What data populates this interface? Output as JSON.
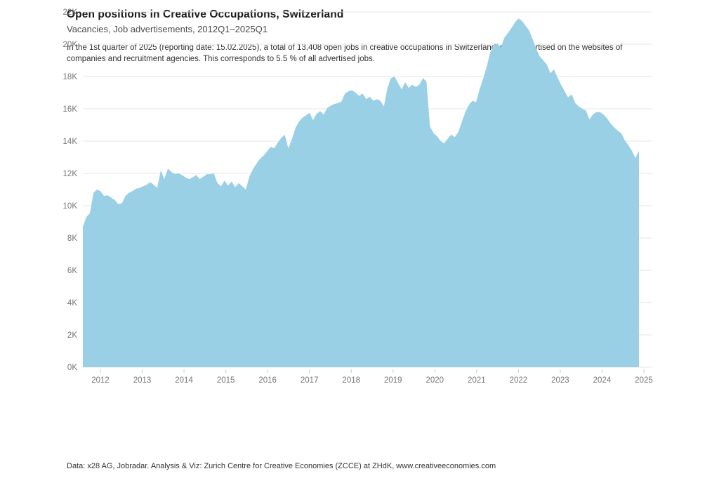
{
  "header": {
    "title": "Open positions in Creative Occupations, Switzerland",
    "subtitle": "Vacancies, Job advertisements, 2012Q1–2025Q1",
    "description": "In the 1st quarter of 2025 (reporting date: 15.02.2025), a total of 13,408 open jobs in creative occupations in Switzerland were advertised on the websites of companies and recruitment agencies. This corresponds to 5.5 % of all advertised jobs."
  },
  "footer": {
    "source": "Data: x28 AG, Jobradar. Analysis & Viz: Zurich Centre for Creative Economies (ZCCE) at ZHdK, www.creativeeconomies.com"
  },
  "chart_data": {
    "type": "area",
    "title": "Open positions in Creative Occupations, Switzerland",
    "series_name": "Open positions (vacancies, job advertisements)",
    "frequency": "monthly",
    "x_start": "2012-01",
    "x_end": "2025-02",
    "x_tick_labels": [
      "2012",
      "2013",
      "2014",
      "2015",
      "2016",
      "2017",
      "2018",
      "2019",
      "2020",
      "2021",
      "2022",
      "2023",
      "2024",
      "2025"
    ],
    "y_tick_labels": [
      "0K",
      "2K",
      "4K",
      "6K",
      "8K",
      "10K",
      "12K",
      "14K",
      "16K",
      "18K",
      "20K",
      "22K"
    ],
    "ylim": [
      0,
      22000
    ],
    "y_tick_step": 2000,
    "grid": "horizontal",
    "legend": "none",
    "area_color": "#9ad0e6",
    "latest": {
      "quarter": "2025Q1",
      "reporting_date": "15.02.2025",
      "open_jobs": 13408,
      "share_of_all_advertised_jobs": "5.5 %"
    },
    "values": [
      8700,
      9300,
      9550,
      10800,
      11000,
      10900,
      10600,
      10650,
      10500,
      10350,
      10100,
      10150,
      10600,
      10800,
      10900,
      11050,
      11100,
      11200,
      11300,
      11450,
      11300,
      11100,
      12200,
      11650,
      12300,
      12100,
      11950,
      12000,
      11900,
      11750,
      11650,
      11750,
      11900,
      11650,
      11800,
      11950,
      11950,
      12000,
      11400,
      11200,
      11550,
      11250,
      11500,
      11150,
      11400,
      11200,
      11000,
      11800,
      12250,
      12600,
      12900,
      13100,
      13350,
      13650,
      13550,
      13900,
      14200,
      14400,
      13550,
      14100,
      14800,
      15200,
      15450,
      15600,
      15750,
      15300,
      15700,
      15850,
      15650,
      16050,
      16200,
      16300,
      16350,
      16450,
      16950,
      17100,
      17150,
      17000,
      16800,
      16950,
      16600,
      16750,
      16500,
      16600,
      16500,
      16150,
      17300,
      17900,
      18000,
      17600,
      17200,
      17650,
      17300,
      17500,
      17350,
      17500,
      17900,
      17700,
      14900,
      14500,
      14300,
      14000,
      13850,
      14150,
      14400,
      14250,
      14550,
      15200,
      15800,
      16250,
      16500,
      16400,
      17200,
      17850,
      18600,
      19500,
      19900,
      20050,
      19800,
      20400,
      20700,
      21000,
      21350,
      21600,
      21450,
      21150,
      20850,
      20300,
      19700,
      19250,
      19000,
      18750,
      18200,
      18450,
      17950,
      17500,
      17100,
      16700,
      16900,
      16350,
      16150,
      16000,
      15900,
      15350,
      15650,
      15800,
      15800,
      15650,
      15400,
      15100,
      14850,
      14650,
      14500,
      14050,
      13750,
      13400,
      12950,
      13408
    ]
  },
  "colors": {
    "area_fill": "#9ad0e6",
    "gridline": "#e6e6e6",
    "axis_label": "#767676",
    "tick_mark": "#cccccc"
  }
}
